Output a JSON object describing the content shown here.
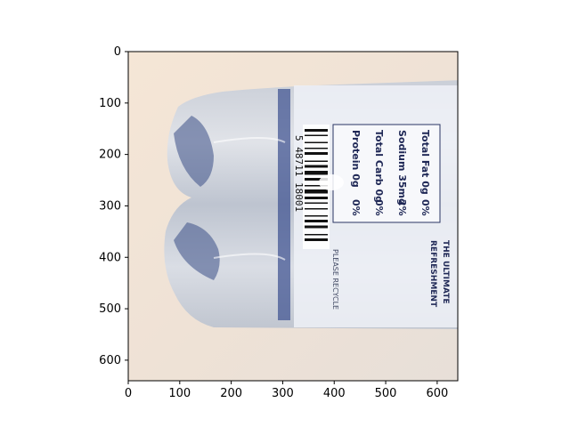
{
  "figure": {
    "image_subject": "bottle-photo",
    "x_ticks": [
      "0",
      "100",
      "200",
      "300",
      "400",
      "500",
      "600"
    ],
    "y_ticks": [
      "0",
      "100",
      "200",
      "300",
      "400",
      "500",
      "600"
    ],
    "x_range": [
      0,
      640
    ],
    "y_range": [
      640,
      0
    ]
  },
  "bottle": {
    "barcode_text": "5 48711 18001",
    "nutrition_lines": [
      "Total Fat 0g",
      "Sodium 35mg",
      "Total Carb 0g",
      "Protein 0g"
    ],
    "nutrition_percents": [
      "0%",
      "2%",
      "0%",
      "0%"
    ],
    "brand_text": "THE ULTIMATE",
    "tagline_text": "REFRESHMENT",
    "side_text": "PLEASE RECYCLE"
  },
  "colors": {
    "background": "#f0e4d8",
    "bottle_blue": "#3a4f8f",
    "label_white": "#f4f6fb"
  }
}
